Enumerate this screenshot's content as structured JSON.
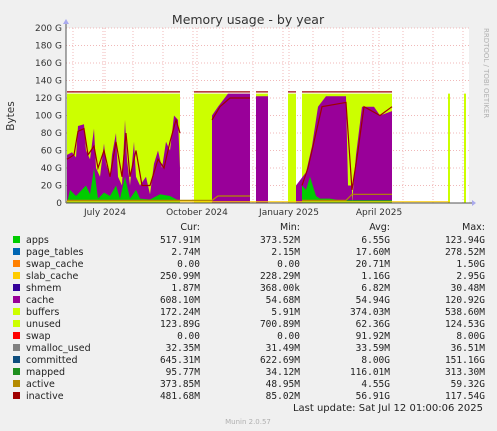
{
  "chart_data": {
    "type": "area",
    "title": "Memory usage - by year",
    "ylabel": "Bytes",
    "side_label": "RRDTOOL / TOBI OETIKER",
    "y_ticks": [
      "0",
      "20 G",
      "40 G",
      "60 G",
      "80 G",
      "100 G",
      "120 G",
      "140 G",
      "160 G",
      "180 G",
      "200 G"
    ],
    "ylim": [
      0,
      200
    ],
    "y_unit": "G",
    "x_ticks": [
      "July 2024",
      "October 2024",
      "January 2025",
      "April 2025"
    ],
    "grid": true,
    "legend_header": [
      "Cur:",
      "Min:",
      "Avg:",
      "Max:"
    ],
    "legend": [
      {
        "name": "apps",
        "color": "#00cc00",
        "cur": "517.91M",
        "min": "373.52M",
        "avg": "6.55G",
        "max": "123.94G"
      },
      {
        "name": "page_tables",
        "color": "#0066b3",
        "cur": "2.74M",
        "min": "2.15M",
        "avg": "17.60M",
        "max": "278.52M"
      },
      {
        "name": "swap_cache",
        "color": "#ff8000",
        "cur": "0.00",
        "min": "0.00",
        "avg": "20.71M",
        "max": "1.50G"
      },
      {
        "name": "slab_cache",
        "color": "#ffcc00",
        "cur": "250.99M",
        "min": "228.29M",
        "avg": "1.16G",
        "max": "2.95G"
      },
      {
        "name": "shmem",
        "color": "#330099",
        "cur": "1.87M",
        "min": "368.00k",
        "avg": "6.82M",
        "max": "30.48M"
      },
      {
        "name": "cache",
        "color": "#990099",
        "cur": "608.10M",
        "min": "54.68M",
        "avg": "54.94G",
        "max": "120.92G"
      },
      {
        "name": "buffers",
        "color": "#ccff00",
        "cur": "172.24M",
        "min": "5.91M",
        "avg": "374.03M",
        "max": "538.60M"
      },
      {
        "name": "unused",
        "color": "#ccff00",
        "cur": "123.89G",
        "min": "700.89M",
        "avg": "62.36G",
        "max": "124.53G"
      },
      {
        "name": "swap",
        "color": "#ff0000",
        "cur": "0.00",
        "min": "0.00",
        "avg": "91.92M",
        "max": "8.00G"
      },
      {
        "name": "vmalloc_used",
        "color": "#808080",
        "cur": "32.35M",
        "min": "31.49M",
        "avg": "33.59M",
        "max": "36.51M"
      },
      {
        "name": "committed",
        "color": "#0e4d7d",
        "cur": "645.31M",
        "min": "622.69M",
        "avg": "8.00G",
        "max": "151.16G"
      },
      {
        "name": "mapped",
        "color": "#1f8f1f",
        "cur": "95.77M",
        "min": "34.12M",
        "avg": "116.01M",
        "max": "313.30M"
      },
      {
        "name": "active",
        "color": "#b38a00",
        "cur": "373.85M",
        "min": "48.95M",
        "avg": "4.55G",
        "max": "59.32G"
      },
      {
        "name": "inactive",
        "color": "#a00000",
        "cur": "481.68M",
        "min": "85.02M",
        "avg": "56.91G",
        "max": "117.54G"
      }
    ],
    "last_update": "Last update: Sat Jul 12 01:00:06 2025",
    "footer": "Munin 2.0.57"
  }
}
